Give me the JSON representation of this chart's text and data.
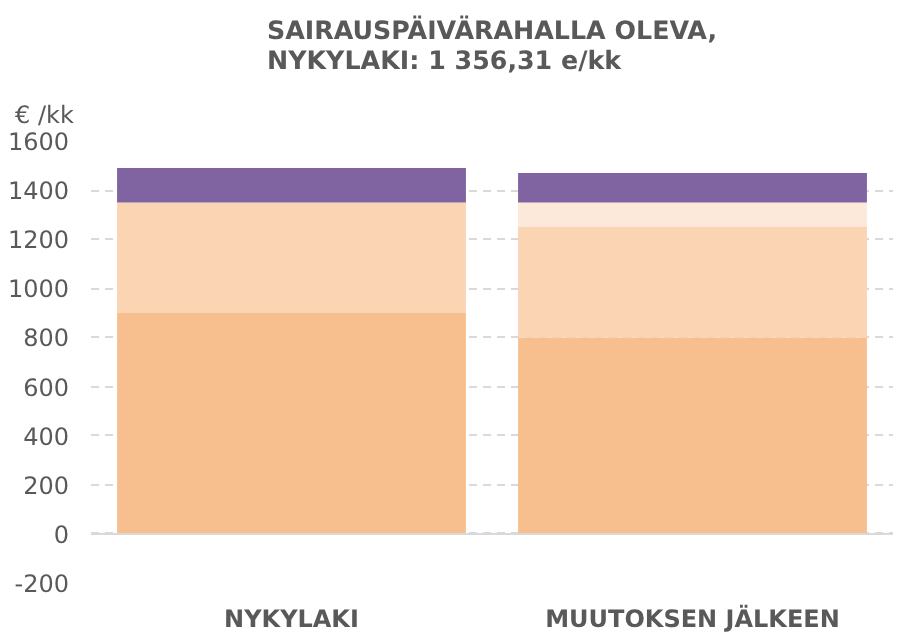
{
  "chart_data": {
    "type": "bar",
    "title": "SAIRAUSPÄIVÄRAHALLA OLEVA,\nNYKYLAKI: 1 356,31 e/kk",
    "ylabel": "€ /kk",
    "categories": [
      "NYKYLAKI",
      "MUUTOKSEN JÄLKEEN"
    ],
    "stacked": true,
    "series": [
      {
        "color": "#f8bf8e",
        "values": [
          900,
          800
        ]
      },
      {
        "color": "#fbd4b4",
        "values": [
          450,
          450
        ]
      },
      {
        "color": "#fce9d9",
        "values": [
          0,
          100
        ]
      },
      {
        "color": "#8064a2",
        "values": [
          140,
          120
        ]
      }
    ],
    "ylim": [
      -200,
      1600
    ],
    "yticks": [
      -200,
      0,
      200,
      400,
      600,
      800,
      1000,
      1200,
      1400,
      1600
    ],
    "grid": "y"
  }
}
